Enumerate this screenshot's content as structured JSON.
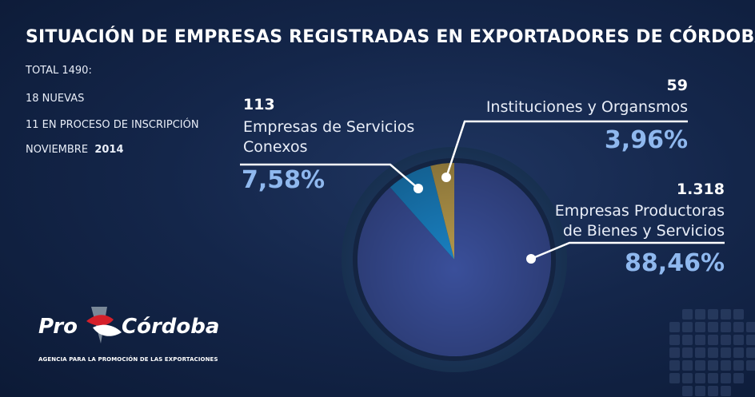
{
  "title": "SITUACIÓN DE EMPRESAS REGISTRADAS EN EXPORTADORES DE CÓRDOBA",
  "info": {
    "total": "TOTAL 1490:",
    "nuevas": "18 NUEVAS",
    "proceso": "11 EN PROCESO DE INSCRIPCIÓN",
    "fecha_mes": "NOVIEMBRE",
    "fecha_anio": "2014"
  },
  "logo": {
    "left": "Pro",
    "right": "Córdoba",
    "tagline": "AGENCIA PARA LA PROMOCIÓN DE LAS EXPORTACIONES"
  },
  "chart_data": {
    "type": "pie",
    "title": "SITUACIÓN DE EMPRESAS REGISTRADAS EN EXPORTADORES DE CÓRDOBA",
    "slices": [
      {
        "count": "1.318",
        "value": 1318,
        "label_line1": "Empresas Productoras",
        "label_line2": "de Bienes y Servicios",
        "percent": "88,46%",
        "color": "#3a4f9a"
      },
      {
        "count": "113",
        "value": 113,
        "label_line1": "Empresas de Servicios",
        "label_line2": "Conexos",
        "percent": "7,58%",
        "color": "#1a82c4"
      },
      {
        "count": "59",
        "value": 59,
        "label_line1": "Instituciones y Organsmos",
        "label_line2": "",
        "percent": "3,96%",
        "color": "#b79a4c"
      }
    ]
  }
}
